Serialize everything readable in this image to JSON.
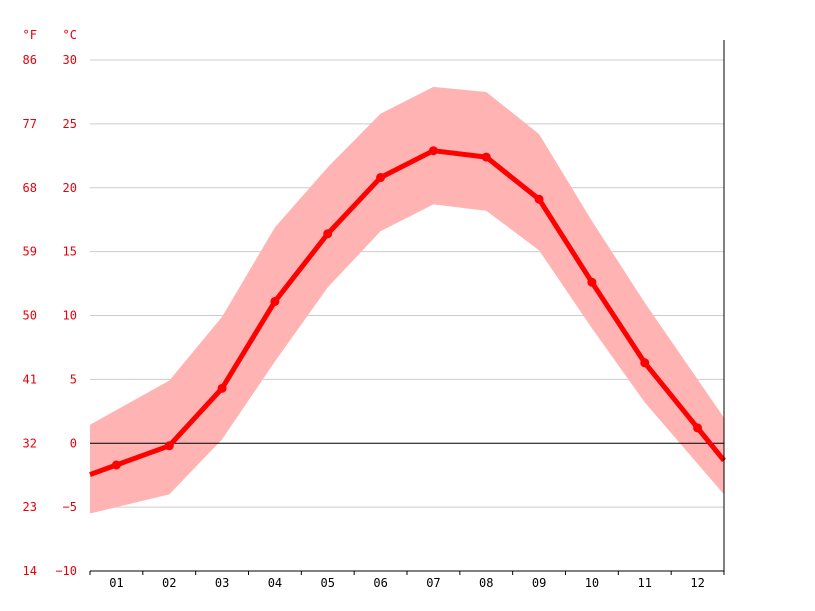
{
  "chart_data": {
    "type": "line",
    "units": {
      "fahrenheit": "°F",
      "celsius": "°C"
    },
    "categories": [
      "01",
      "02",
      "03",
      "04",
      "05",
      "06",
      "07",
      "08",
      "09",
      "10",
      "11",
      "12"
    ],
    "y_ticks_c": [
      "30",
      "25",
      "20",
      "15",
      "10",
      "5",
      "0",
      "-5",
      "-10"
    ],
    "y_ticks_f": [
      "86",
      "77",
      "68",
      "59",
      "50",
      "41",
      "32",
      "23",
      "14"
    ],
    "ylim": [
      -10,
      30
    ],
    "grid": true,
    "series": [
      {
        "role": "average",
        "values": [
          -1.7,
          -0.2,
          4.3,
          11.1,
          16.4,
          20.8,
          22.9,
          22.4,
          19.1,
          12.6,
          6.3,
          1.2
        ]
      },
      {
        "role": "min",
        "values": [
          -5.0,
          -4.0,
          0.3,
          6.4,
          12.2,
          16.6,
          18.7,
          18.2,
          15.1,
          9.0,
          3.2,
          -1.6
        ]
      },
      {
        "role": "max",
        "values": [
          2.6,
          4.9,
          9.9,
          16.9,
          21.6,
          25.8,
          27.9,
          27.5,
          24.2,
          17.4,
          11.0,
          5.0
        ]
      }
    ],
    "colors": {
      "line": "#ff0000",
      "band": "#ffb3b3",
      "tick_text": "#e8000b",
      "grid": "#cccccc",
      "axis": "#000000"
    }
  }
}
